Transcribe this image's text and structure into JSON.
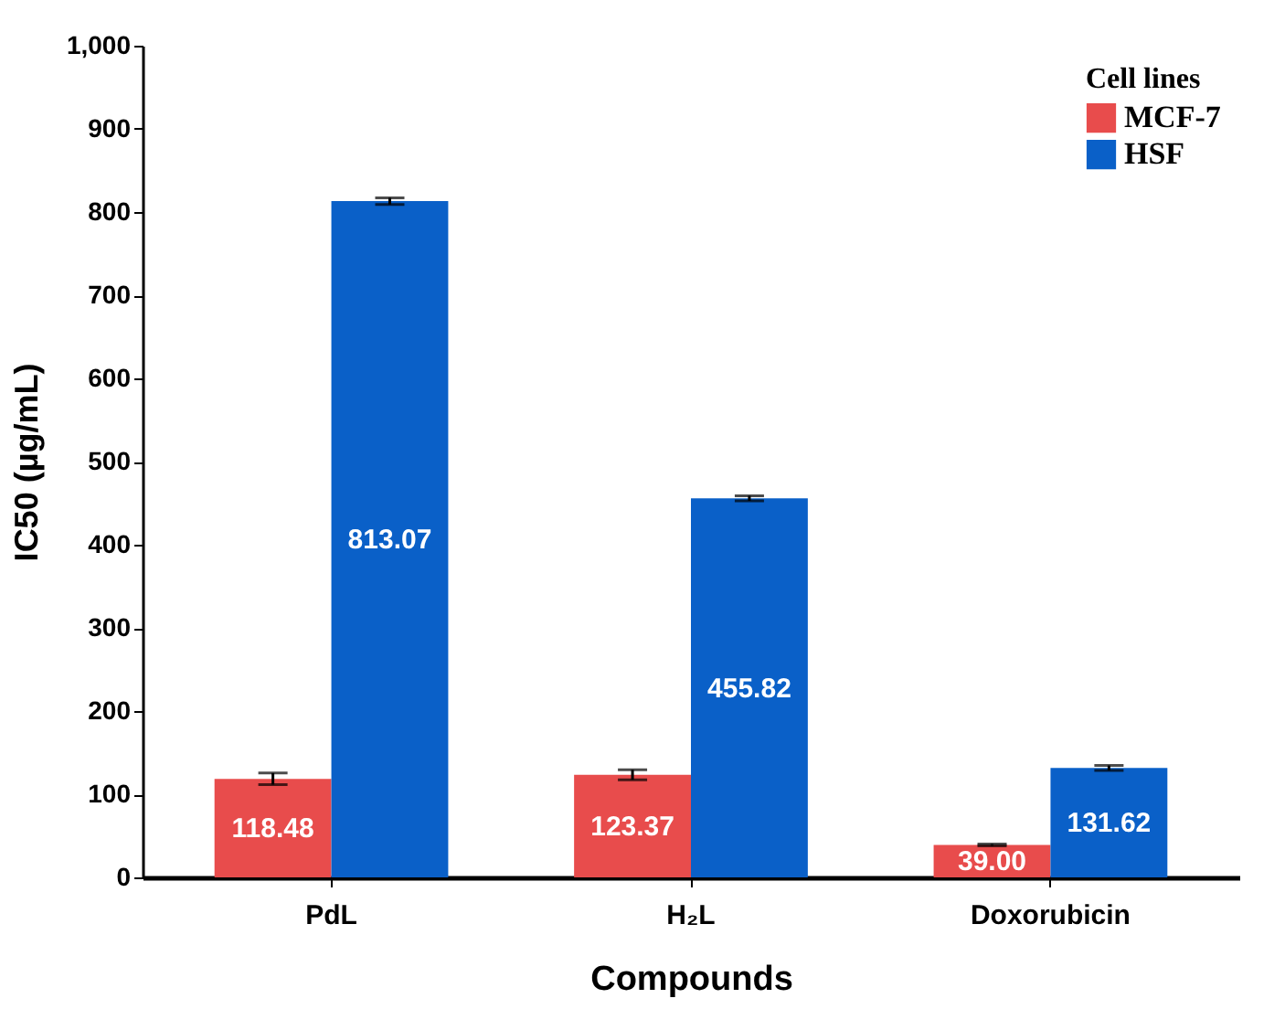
{
  "chart_data": {
    "type": "bar",
    "xlabel": "Compounds",
    "ylabel": "IC50 (µg/mL)",
    "legend_title": "Cell lines",
    "categories": [
      "PdL",
      "H₂L",
      "Doxorubicin"
    ],
    "series": [
      {
        "name": "MCF-7",
        "color": "#e84c4c",
        "values": [
          118.48,
          123.37,
          39.0
        ],
        "errors": [
          7,
          6,
          1
        ],
        "value_labels": [
          "118.48",
          "123.37",
          "39.00"
        ]
      },
      {
        "name": "HSF",
        "color": "#0a60c8",
        "values": [
          813.07,
          455.82,
          131.62
        ],
        "errors": [
          4,
          3,
          3
        ],
        "value_labels": [
          "813.07",
          "455.82",
          "131.62"
        ]
      }
    ],
    "ylim": [
      0,
      1000
    ],
    "yticks": [
      0,
      100,
      200,
      300,
      400,
      500,
      600,
      700,
      800,
      900,
      {
        "value": 1000,
        "label": "1,000"
      }
    ],
    "grid": false,
    "legend": "top right"
  }
}
